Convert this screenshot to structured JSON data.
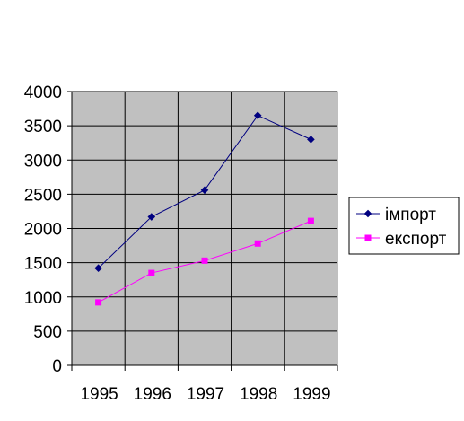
{
  "chart_data": {
    "type": "line",
    "title": "",
    "xlabel": "",
    "ylabel": "",
    "categories": [
      "1995",
      "1996",
      "1997",
      "1998",
      "1999"
    ],
    "ylim": [
      0,
      4000
    ],
    "yticks": [
      0,
      500,
      1000,
      1500,
      2000,
      2500,
      3000,
      3500,
      4000
    ],
    "grid": true,
    "legend_position": "right",
    "plot_background": "#c0c0c0",
    "series": [
      {
        "name": "імпорт",
        "values": [
          1420,
          2170,
          2560,
          3650,
          3300
        ],
        "color": "#000080",
        "marker": "diamond"
      },
      {
        "name": "експорт",
        "values": [
          920,
          1350,
          1530,
          1780,
          2110
        ],
        "color": "#ff00ff",
        "marker": "square"
      }
    ]
  }
}
